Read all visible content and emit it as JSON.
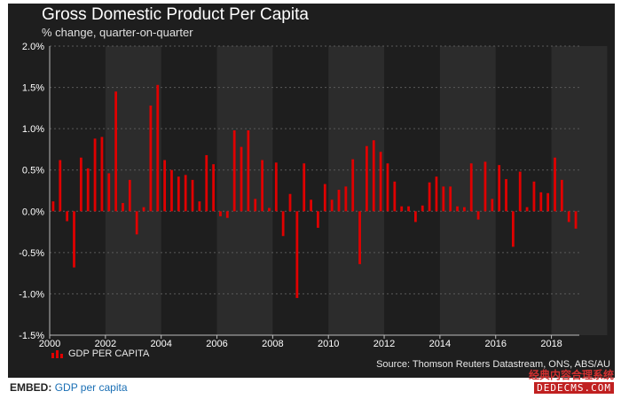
{
  "header": {
    "title": "Gross Domestic Product Per Capita",
    "subtitle": "% change, quarter-on-quarter"
  },
  "legend": {
    "label": "GDP PER CAPITA"
  },
  "source": "Source: Thomson Reuters Datastream, ONS, ABS/AU",
  "embed": {
    "label": "EMBED:",
    "link_text": "GDP per capita"
  },
  "watermark": {
    "top": "经典内容合理系统",
    "bottom": "DEDECMS.COM"
  },
  "colors": {
    "background": "#1e1e1e",
    "band": "#2c2c2c",
    "bar": "#e00000",
    "text": "#ffffff",
    "grid": "#5a5a5a"
  },
  "chart_data": {
    "type": "bar",
    "title": "Gross Domestic Product Per Capita",
    "subtitle": "% change, quarter-on-quarter",
    "series": [
      {
        "name": "GDP PER CAPITA",
        "values": [
          0.12,
          0.62,
          -0.12,
          -0.68,
          0.65,
          0.52,
          0.88,
          0.9,
          0.46,
          1.45,
          0.1,
          0.38,
          -0.28,
          0.05,
          1.28,
          1.53,
          0.62,
          0.5,
          0.42,
          0.44,
          0.38,
          0.12,
          0.68,
          0.57,
          -0.06,
          -0.08,
          0.98,
          0.78,
          0.98,
          0.15,
          0.62,
          0.04,
          0.59,
          -0.3,
          0.21,
          -1.05,
          0.58,
          0.14,
          -0.2,
          0.33,
          0.14,
          0.26,
          0.3,
          0.63,
          -0.64,
          0.79,
          0.86,
          0.72,
          0.58,
          0.36,
          0.06,
          0.06,
          -0.13,
          0.07,
          0.35,
          0.42,
          0.3,
          0.3,
          0.06,
          0.05,
          0.58,
          -0.1,
          0.6,
          0.15,
          0.56,
          0.39,
          -0.43,
          0.48,
          0.05,
          0.36,
          0.23,
          0.22,
          0.65,
          0.38,
          -0.13,
          -0.21
        ]
      }
    ],
    "x_start": 2000,
    "x_end": 2019,
    "periods_per_year": 4,
    "x_ticks": [
      "2000",
      "2002",
      "2004",
      "2006",
      "2008",
      "2010",
      "2012",
      "2014",
      "2016",
      "2018"
    ],
    "y_ticks": [
      "2.0%",
      "1.5%",
      "1.0%",
      "0.5%",
      "0.0%",
      "-0.5%",
      "-1.0%",
      "-1.5%"
    ],
    "ylim": [
      -1.5,
      2.0
    ],
    "grid": true,
    "legend_position": "bottom-left"
  }
}
